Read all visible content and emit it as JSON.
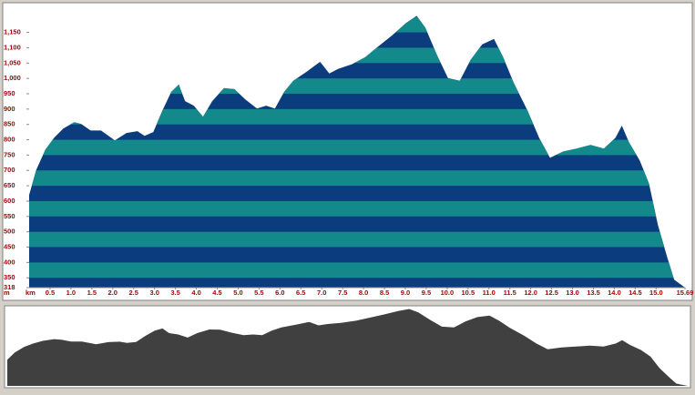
{
  "chart_data": {
    "type": "area",
    "x_unit": "km",
    "y_unit": "m",
    "x": [
      0,
      0.17,
      0.39,
      0.6,
      0.82,
      1.08,
      1.25,
      1.47,
      1.72,
      2.05,
      2.33,
      2.59,
      2.76,
      2.97,
      3.19,
      3.4,
      3.58,
      3.73,
      3.94,
      4.16,
      4.38,
      4.66,
      4.91,
      5.17,
      5.45,
      5.67,
      5.88,
      6.1,
      6.32,
      6.64,
      6.96,
      7.18,
      7.39,
      7.72,
      8.04,
      8.36,
      8.69,
      9.01,
      9.27,
      9.48,
      9.76,
      10.02,
      10.3,
      10.56,
      10.84,
      11.12,
      11.34,
      11.59,
      11.92,
      12.2,
      12.46,
      12.78,
      13.1,
      13.43,
      13.75,
      14.03,
      14.18,
      14.35,
      14.61,
      14.83,
      15.04,
      15.26,
      15.43,
      15.69
    ],
    "values": [
      620,
      702,
      768,
      807,
      837,
      857,
      851,
      830,
      830,
      798,
      822,
      828,
      813,
      825,
      896,
      956,
      980,
      926,
      911,
      875,
      926,
      968,
      965,
      932,
      902,
      911,
      902,
      956,
      992,
      1022,
      1054,
      1016,
      1031,
      1046,
      1069,
      1105,
      1141,
      1180,
      1204,
      1165,
      1075,
      1001,
      992,
      1060,
      1111,
      1129,
      1069,
      986,
      896,
      807,
      741,
      762,
      771,
      783,
      771,
      807,
      846,
      792,
      732,
      657,
      523,
      419,
      344,
      318
    ],
    "colors": [
      "#0b3c7e",
      "#13898b"
    ],
    "overview_color": "#404040",
    "xlim": [
      0,
      15.69
    ],
    "ylim": [
      318,
      1220
    ],
    "xticks": [
      0.5,
      {
        "value": 1,
        "label": "1.0"
      },
      1.5,
      {
        "value": 2,
        "label": "2.0"
      },
      2.5,
      {
        "value": 3,
        "label": "3.0"
      },
      3.5,
      {
        "value": 4,
        "label": "4.0"
      },
      4.5,
      {
        "value": 5,
        "label": "5.0"
      },
      5.5,
      {
        "value": 6,
        "label": "6.0"
      },
      6.5,
      {
        "value": 7,
        "label": "7.0"
      },
      7.5,
      {
        "value": 8,
        "label": "8.0"
      },
      8.5,
      {
        "value": 9,
        "label": "9.0"
      },
      9.5,
      {
        "value": 10,
        "label": "10.0"
      },
      10.5,
      {
        "value": 11,
        "label": "11.0"
      },
      11.5,
      {
        "value": 12,
        "label": "12.0"
      },
      12.5,
      {
        "value": 13,
        "label": "13.0"
      },
      13.5,
      {
        "value": 14,
        "label": "14.0"
      },
      14.5,
      {
        "value": 15,
        "label": "15.0"
      },
      15.69
    ],
    "yticks": [
      318,
      350,
      400,
      450,
      500,
      550,
      600,
      650,
      700,
      750,
      800,
      850,
      900,
      950,
      {
        "value": 1000,
        "label": "1,000"
      },
      {
        "value": 1050,
        "label": "1,050"
      },
      {
        "value": 1100,
        "label": "1,100"
      },
      {
        "value": 1150,
        "label": "1,150"
      }
    ]
  }
}
